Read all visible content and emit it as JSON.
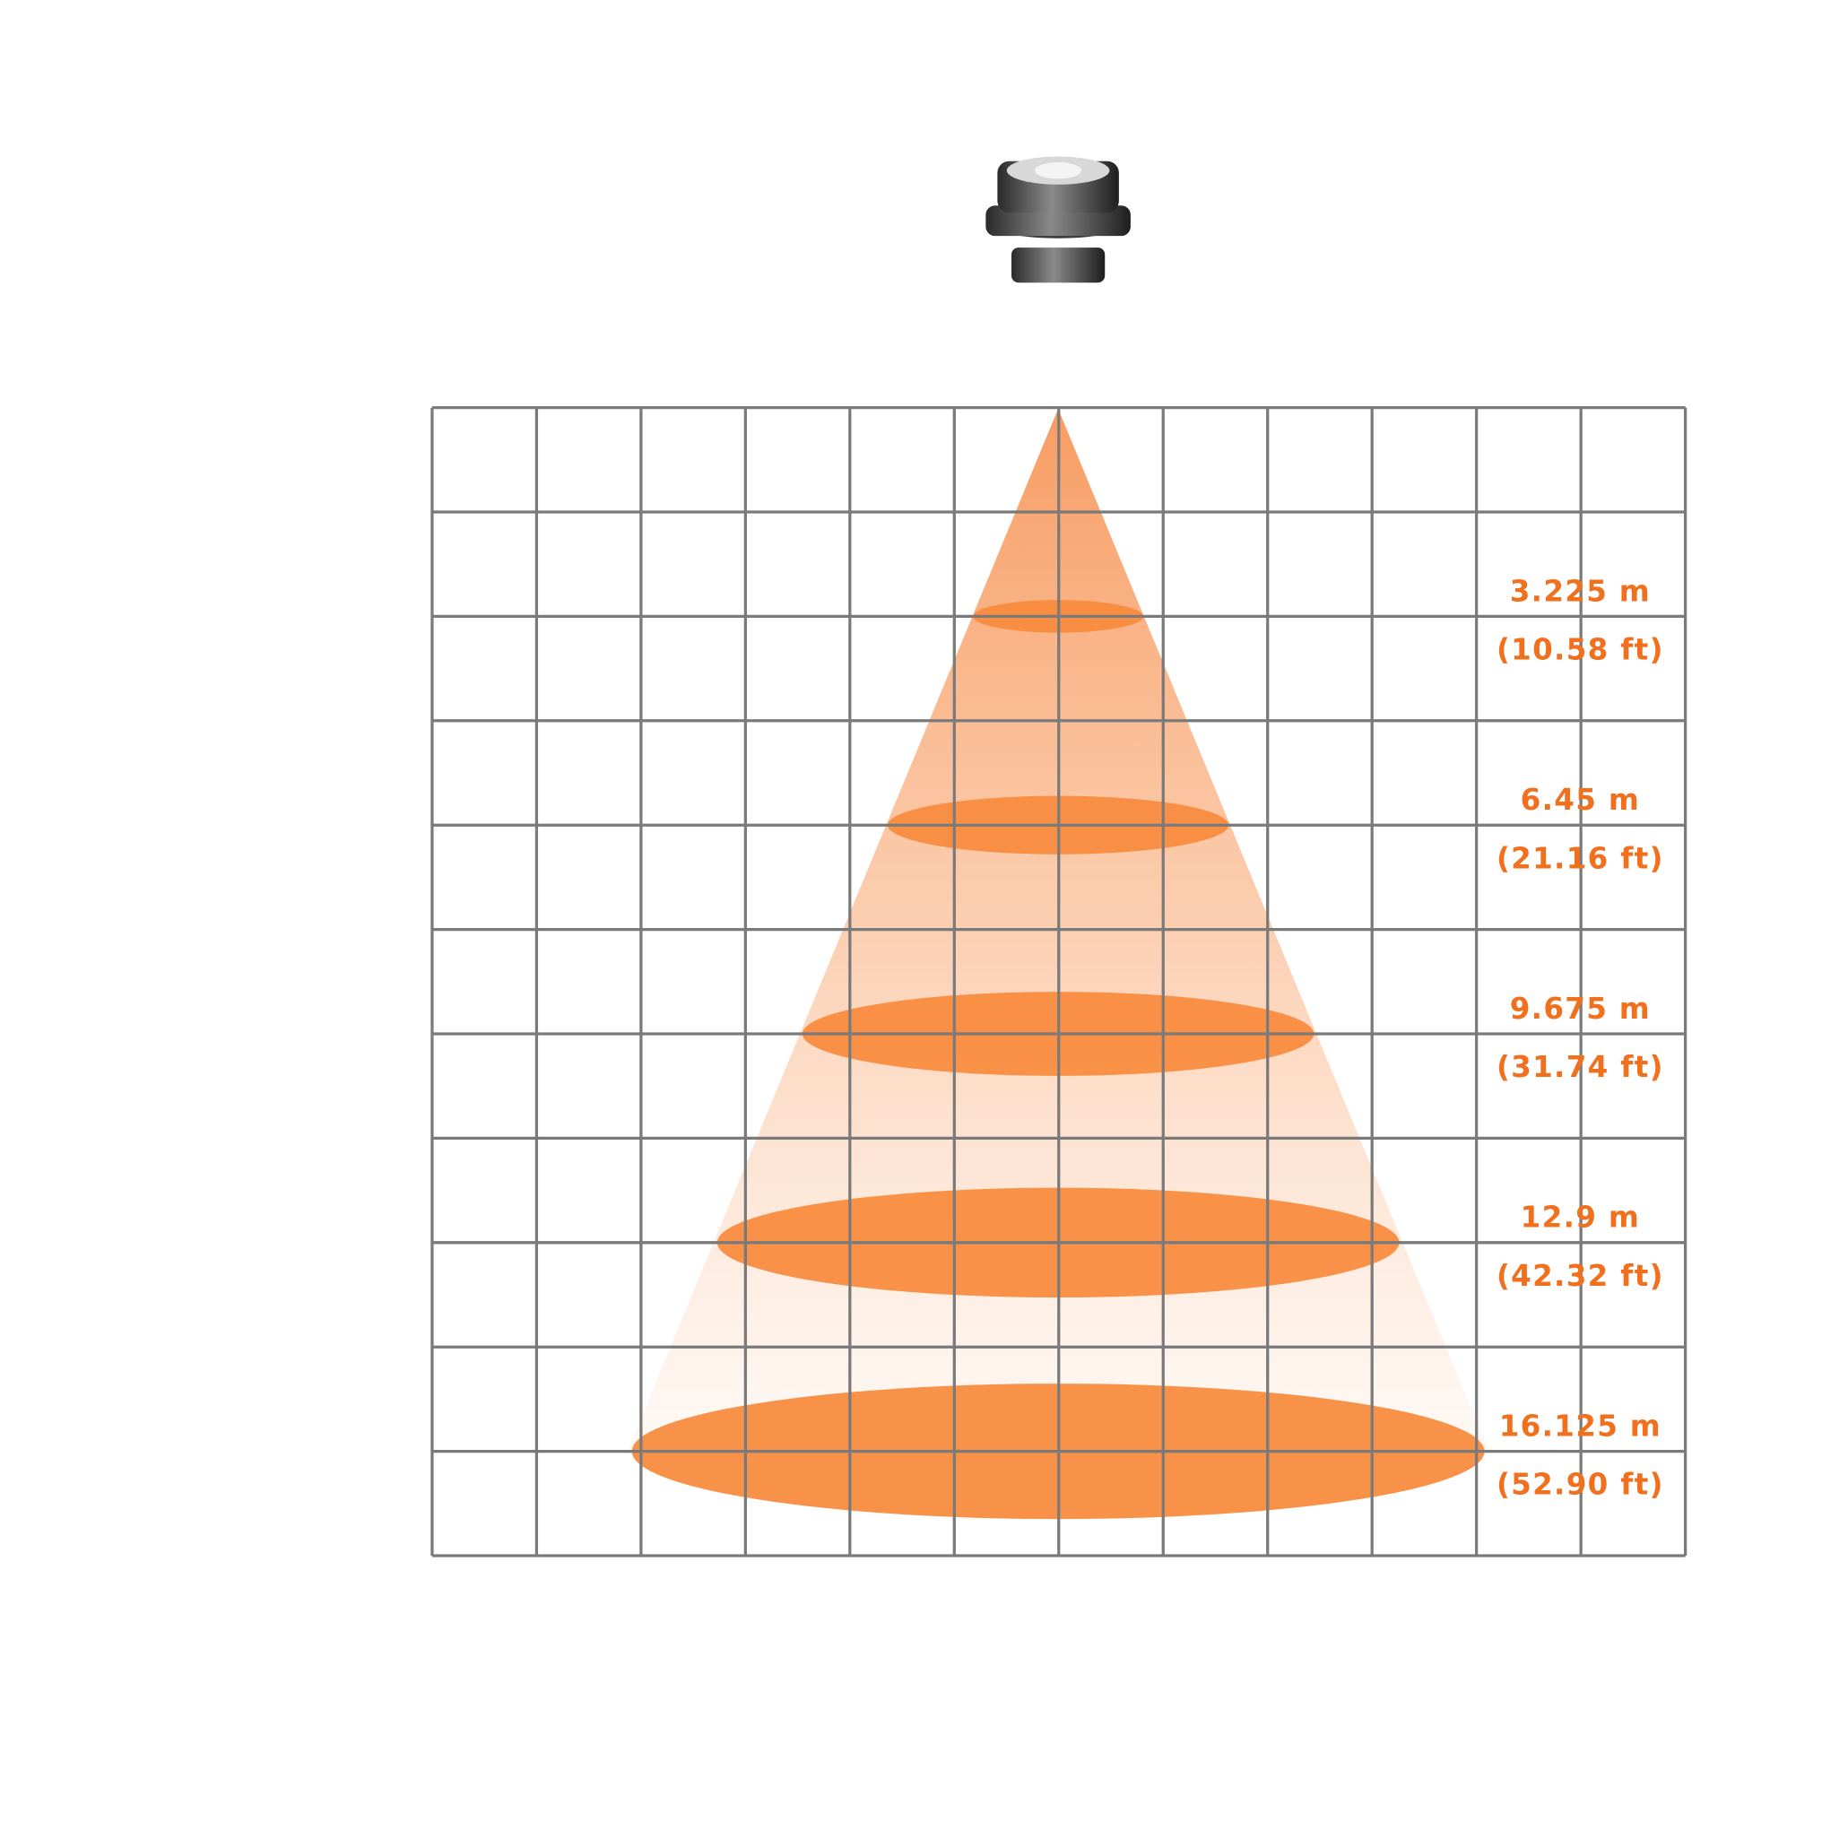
{
  "beams": [
    {
      "diameter": "3.225 m",
      "feet": "(10.58 ft)"
    },
    {
      "diameter": "6.45 m",
      "feet": "(21.16 ft)"
    },
    {
      "diameter": "9.675 m",
      "feet": "(31.74 ft)"
    },
    {
      "diameter": "12.9 m",
      "feet": "(42.32 ft)"
    },
    {
      "diameter": "16.125 m",
      "feet": "(52.90 ft)"
    }
  ]
}
